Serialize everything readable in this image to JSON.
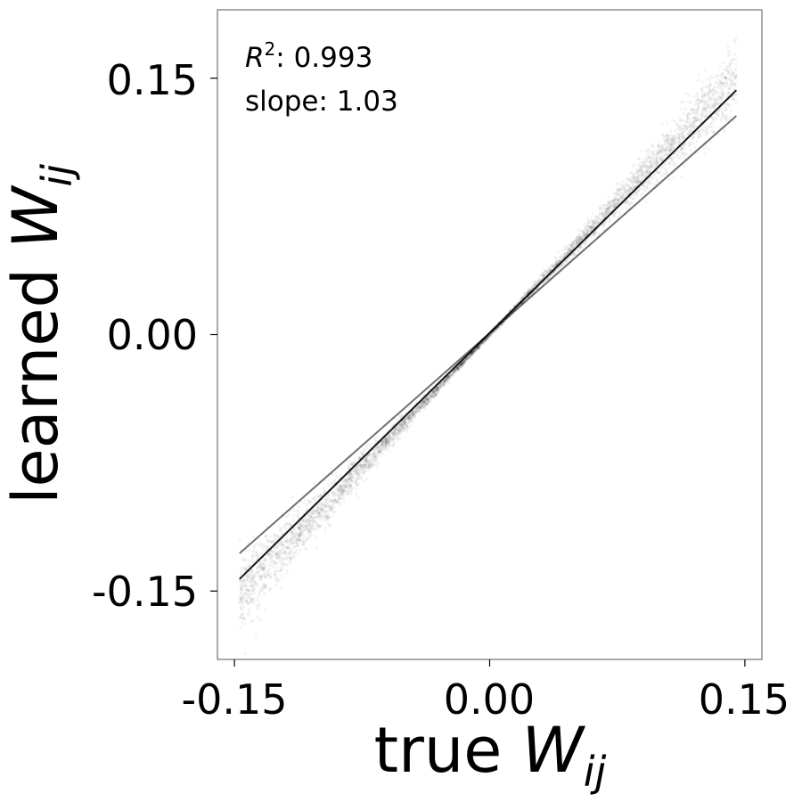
{
  "chart_data": {
    "type": "scatter",
    "title": "",
    "xlabel": {
      "prefix": "true ",
      "symbol": "W",
      "subscript": "ij"
    },
    "ylabel": {
      "prefix": "learned ",
      "symbol": "W",
      "subscript": "ij"
    },
    "xlim": [
      -0.16,
      0.16
    ],
    "ylim": [
      -0.19,
      0.19
    ],
    "xticks": [
      -0.15,
      0.0,
      0.15
    ],
    "xtick_labels": [
      "-0.15",
      "0.00",
      "0.15"
    ],
    "yticks": [
      -0.15,
      0.0,
      0.15
    ],
    "ytick_labels": [
      "-0.15",
      "0.00",
      "0.15"
    ],
    "grid": false,
    "annotations": {
      "r2": {
        "symbol": "R",
        "superscript": "2",
        "text": ": 0.993"
      },
      "slope": "slope: 1.03"
    },
    "point_cloud": {
      "x_range": [
        -0.147,
        0.145
      ],
      "center_slope": 1.03,
      "color": "#000000"
    },
    "lines": [
      {
        "x": [
          -0.147,
          0.145
        ],
        "y": [
          -0.143,
          0.143
        ],
        "color": "#000000",
        "opacity": 0.9
      },
      {
        "x": [
          -0.147,
          0.145
        ],
        "y": [
          -0.128,
          0.128
        ],
        "color": "#000000",
        "opacity": 0.55
      }
    ]
  }
}
